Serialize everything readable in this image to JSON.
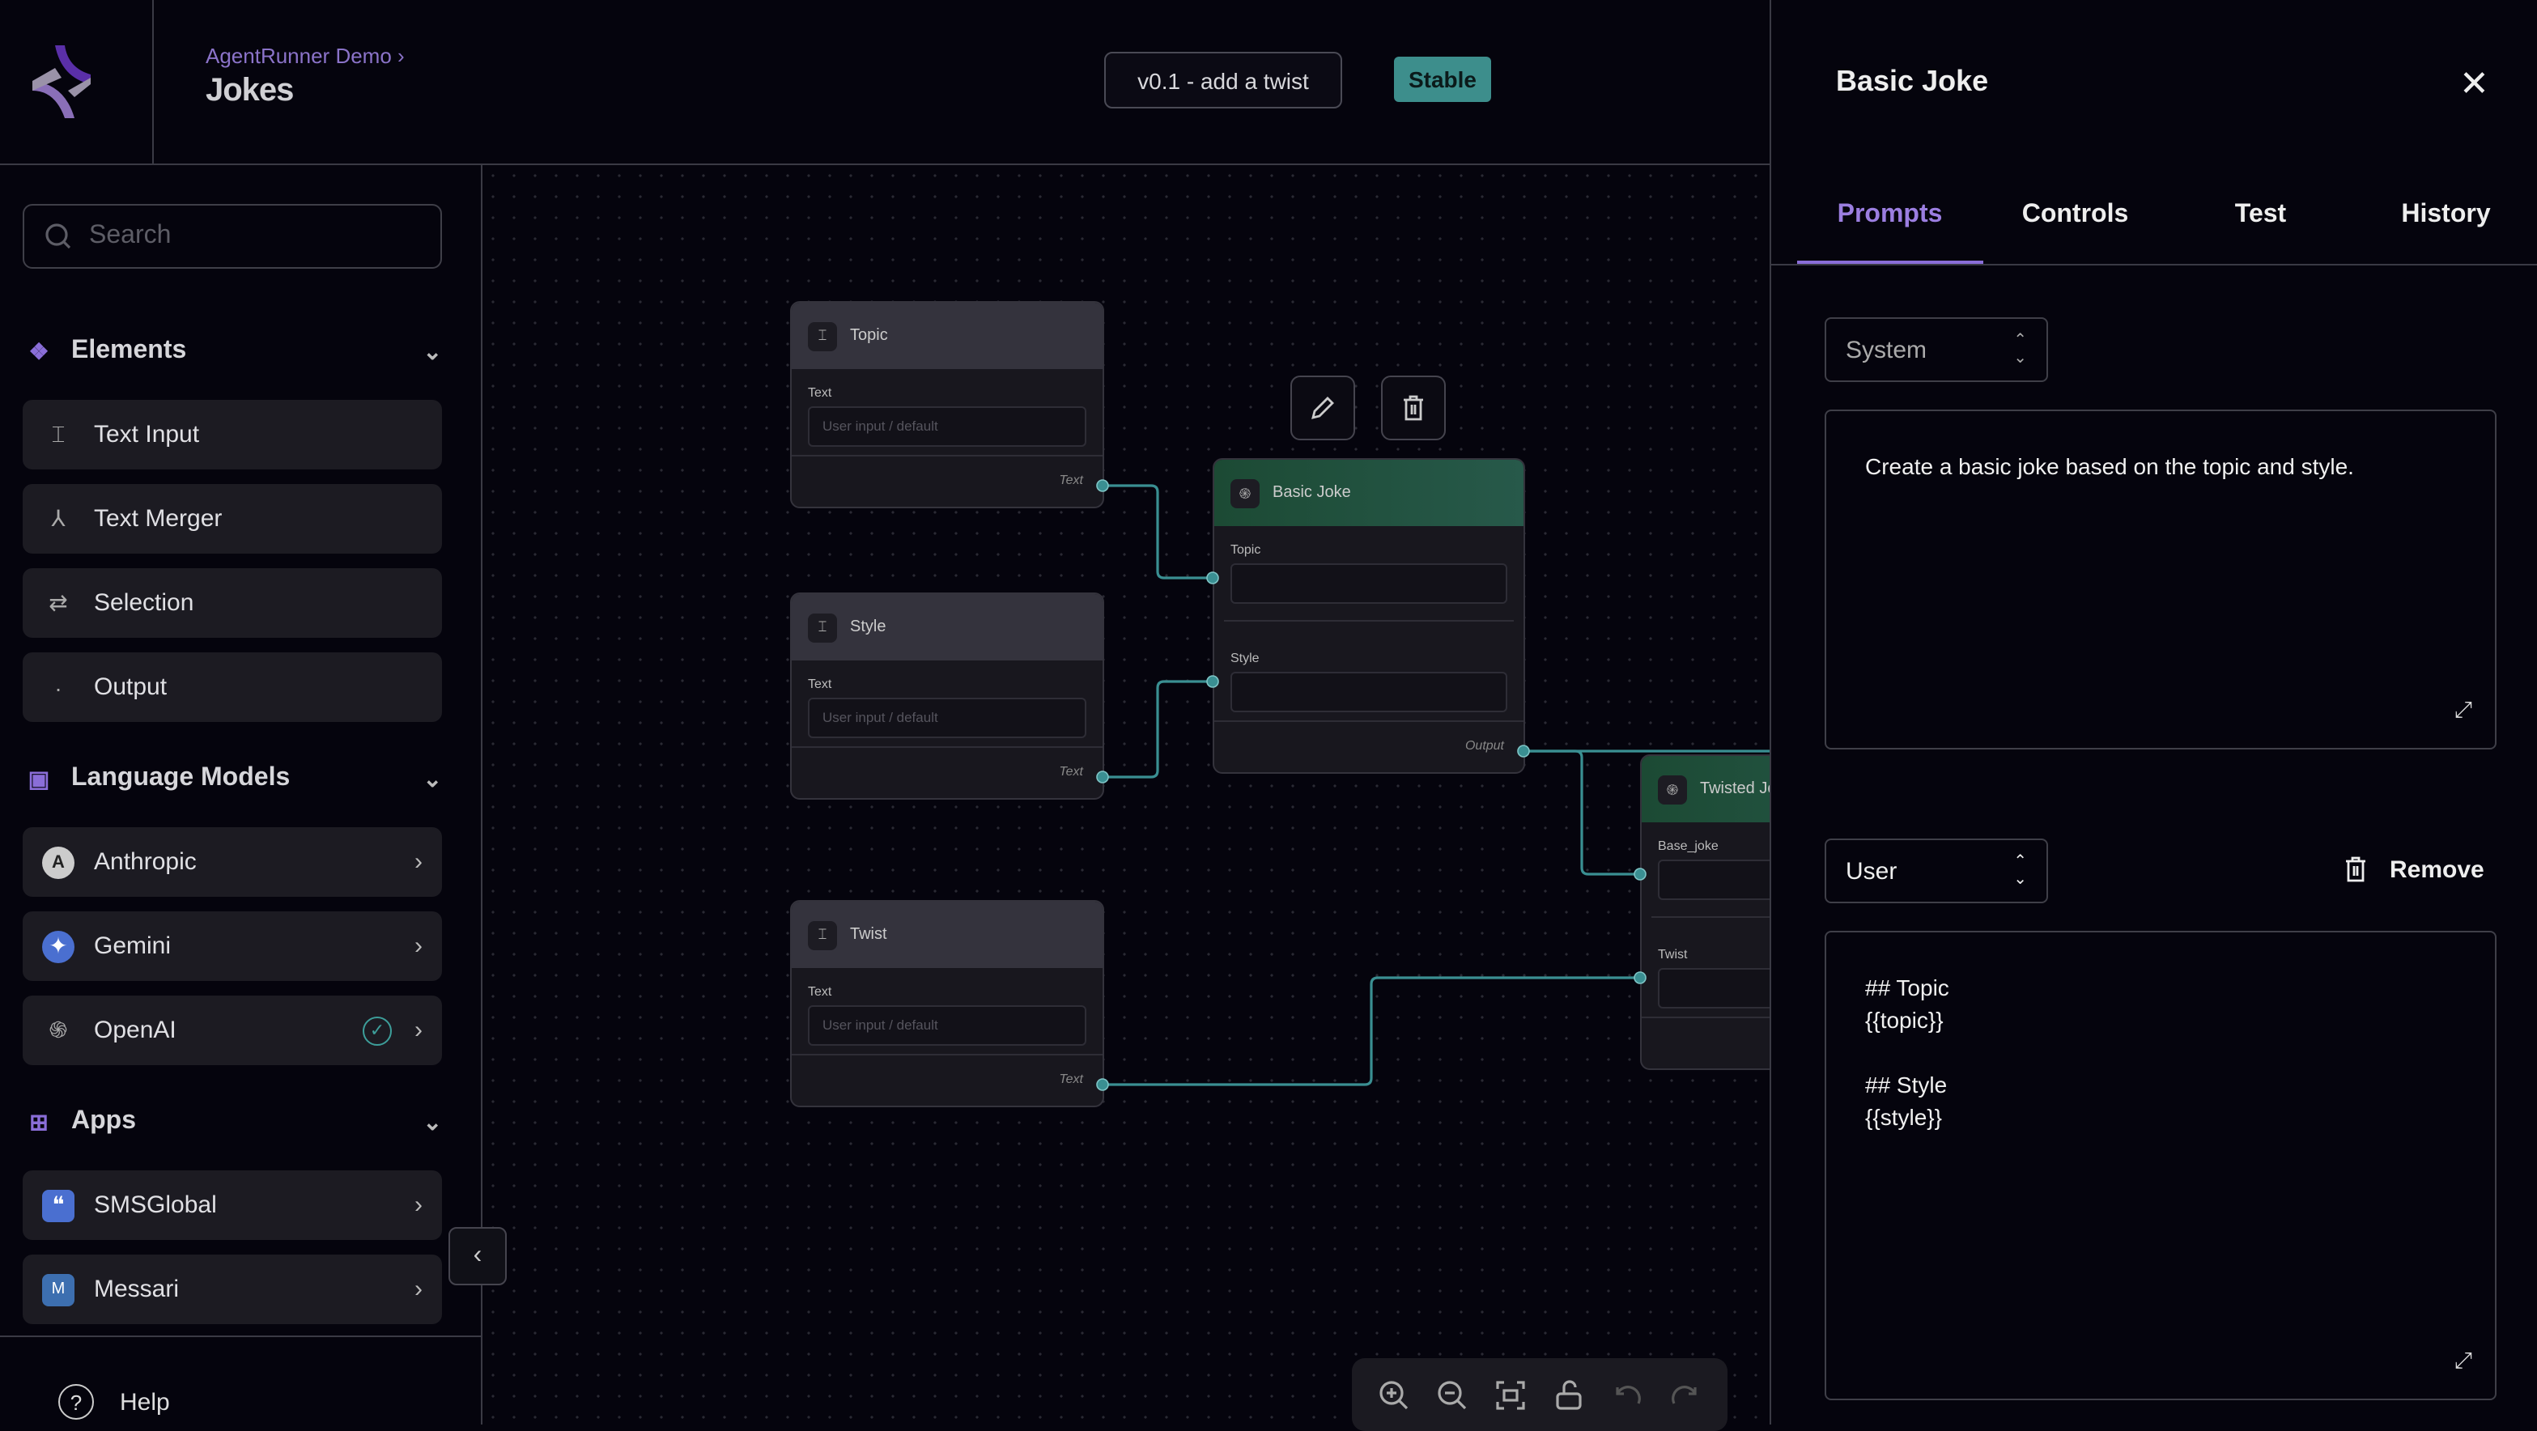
{
  "header": {
    "breadcrumb": "AgentRunner Demo ›",
    "title": "Jokes",
    "version": "v0.1 - add a twist",
    "status": "Stable"
  },
  "sidebar": {
    "search_placeholder": "Search",
    "elements": {
      "title": "Elements",
      "items": [
        {
          "label": "Text Input",
          "icon": "text-input-icon"
        },
        {
          "label": "Text Merger",
          "icon": "merge-icon"
        },
        {
          "label": "Selection",
          "icon": "selection-icon"
        },
        {
          "label": "Output",
          "icon": "dot-icon"
        }
      ]
    },
    "models": {
      "title": "Language Models",
      "items": [
        {
          "label": "Anthropic",
          "icon": "anthropic-icon"
        },
        {
          "label": "Gemini",
          "icon": "gemini-icon"
        },
        {
          "label": "OpenAI",
          "icon": "openai-icon",
          "connected": true
        }
      ]
    },
    "apps": {
      "title": "Apps",
      "items": [
        {
          "label": "SMSGlobal",
          "icon": "smsglobal-icon"
        },
        {
          "label": "Messari",
          "icon": "messari-icon"
        }
      ]
    },
    "help": "Help"
  },
  "canvas": {
    "nodes": [
      {
        "title": "Topic",
        "field": "Text",
        "placeholder": "User input / default",
        "output": "Text"
      },
      {
        "title": "Style",
        "field": "Text",
        "placeholder": "User input / default",
        "output": "Text"
      },
      {
        "title": "Twist",
        "field": "Text",
        "placeholder": "User input / default",
        "output": "Text"
      },
      {
        "title": "Basic Joke",
        "inputs": [
          "Topic",
          "Style"
        ],
        "output": "Output"
      },
      {
        "title": "Twisted Jo",
        "inputs": [
          "Base_joke",
          "Twist"
        ]
      }
    ],
    "edge_color": "#3a8f92",
    "node_header_color": "#1f4d3a"
  },
  "panel": {
    "title": "Basic Joke",
    "tabs": [
      "Prompts",
      "Controls",
      "Test",
      "History"
    ],
    "active_tab": "Prompts",
    "prompts": [
      {
        "role": "System",
        "content": "Create a basic joke based on the topic and style."
      },
      {
        "role": "User",
        "content": "## Topic\n{{topic}}\n\n## Style\n{{style}}",
        "remove_label": "Remove"
      }
    ]
  },
  "colors": {
    "accent": "#8a6ed8",
    "stable": "#3d8e8c",
    "background": "#05040d"
  }
}
